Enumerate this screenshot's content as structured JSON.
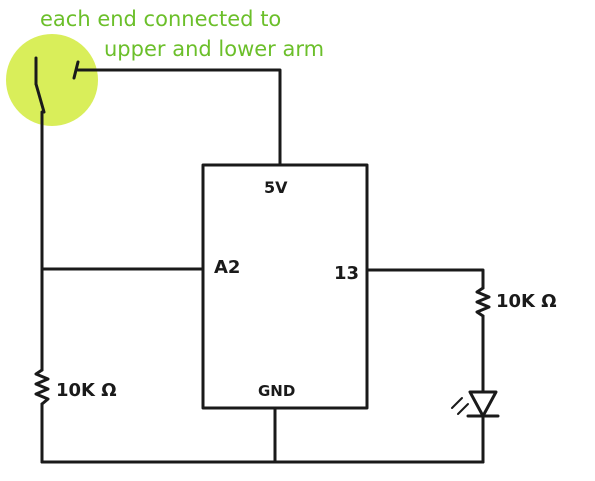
{
  "annotation": {
    "line1": "each end connected to",
    "line2": "upper and lower arm",
    "highlight_color": "#d9ee5a",
    "text_color": "#6bbf2a"
  },
  "board": {
    "pin_5v": "5V",
    "pin_a2": "A2",
    "pin_13": "13",
    "pin_gnd": "GND"
  },
  "components": {
    "left_resistor_label": "10K Ω",
    "right_resistor_label": "10K Ω"
  }
}
